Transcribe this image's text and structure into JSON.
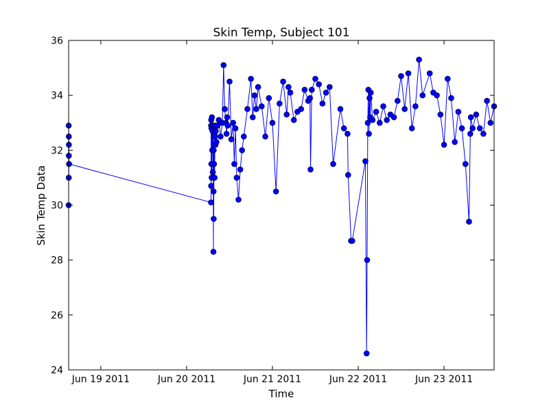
{
  "chart_data": {
    "type": "line",
    "title": "Skin Temp, Subject 101",
    "xlabel": "Time",
    "ylabel": "Skin Temp Data",
    "ylim": [
      24,
      36
    ],
    "y_ticks": [
      24,
      26,
      28,
      30,
      32,
      34,
      36
    ],
    "xlim": [
      "2011-06-18 15:00",
      "2011-06-23 14:00"
    ],
    "x_ticks": [
      {
        "date": "2011-06-19 00:00",
        "label": "Jun 19 2011"
      },
      {
        "date": "2011-06-20 00:00",
        "label": "Jun 20 2011"
      },
      {
        "date": "2011-06-21 00:00",
        "label": "Jun 21 2011"
      },
      {
        "date": "2011-06-22 00:00",
        "label": "Jun 22 2011"
      },
      {
        "date": "2011-06-23 00:00",
        "label": "Jun 23 2011"
      }
    ],
    "grid": false,
    "legend": "none",
    "colors": {
      "line": "#0000ff",
      "marker_fill": "#0000ff",
      "marker_edge": "#000000",
      "frame": "#000000"
    },
    "series": [
      {
        "x": [
          "2011-06-18 15:00",
          "2011-06-18 15:01",
          "2011-06-18 15:02",
          "2011-06-18 15:03",
          "2011-06-18 15:04",
          "2011-06-18 15:05",
          "2011-06-18 15:07",
          "2011-06-20 06:50",
          "2011-06-20 06:51",
          "2011-06-20 06:52",
          "2011-06-20 06:53",
          "2011-06-20 06:55",
          "2011-06-20 06:57",
          "2011-06-20 07:00",
          "2011-06-20 07:05",
          "2011-06-20 07:10",
          "2011-06-20 07:15",
          "2011-06-20 07:20",
          "2011-06-20 07:25",
          "2011-06-20 07:30",
          "2011-06-20 07:32",
          "2011-06-20 07:34",
          "2011-06-20 07:35",
          "2011-06-20 07:40",
          "2011-06-20 07:45",
          "2011-06-20 07:50",
          "2011-06-20 07:55",
          "2011-06-20 08:00",
          "2011-06-20 08:05",
          "2011-06-20 08:10",
          "2011-06-20 08:20",
          "2011-06-20 08:40",
          "2011-06-20 09:00",
          "2011-06-20 09:30",
          "2011-06-20 10:00",
          "2011-06-20 10:20",
          "2011-06-20 10:40",
          "2011-06-20 11:00",
          "2011-06-20 11:10",
          "2011-06-20 11:20",
          "2011-06-20 11:30",
          "2011-06-20 12:00",
          "2011-06-20 12:30",
          "2011-06-20 13:00",
          "2011-06-20 13:20",
          "2011-06-20 13:40",
          "2011-06-20 14:00",
          "2011-06-20 14:30",
          "2011-06-20 15:00",
          "2011-06-20 15:30",
          "2011-06-20 16:00",
          "2011-06-20 17:00",
          "2011-06-20 18:00",
          "2011-06-20 18:30",
          "2011-06-20 19:00",
          "2011-06-20 19:30",
          "2011-06-20 20:00",
          "2011-06-20 21:00",
          "2011-06-20 22:00",
          "2011-06-20 23:00",
          "2011-06-21 00:00",
          "2011-06-21 01:00",
          "2011-06-21 02:00",
          "2011-06-21 03:00",
          "2011-06-21 04:00",
          "2011-06-21 04:30",
          "2011-06-21 05:00",
          "2011-06-21 06:00",
          "2011-06-21 07:00",
          "2011-06-21 08:00",
          "2011-06-21 09:00",
          "2011-06-21 10:00",
          "2011-06-21 10:30",
          "2011-06-21 10:40",
          "2011-06-21 11:00",
          "2011-06-21 12:00",
          "2011-06-21 13:00",
          "2011-06-21 14:00",
          "2011-06-21 15:00",
          "2011-06-21 16:00",
          "2011-06-21 17:00",
          "2011-06-21 19:00",
          "2011-06-21 20:00",
          "2011-06-21 21:00",
          "2011-06-21 21:10",
          "2011-06-21 22:00",
          "2011-06-21 22:20",
          "2011-06-22 02:00",
          "2011-06-22 02:20",
          "2011-06-22 02:30",
          "2011-06-22 02:40",
          "2011-06-22 02:50",
          "2011-06-22 03:00",
          "2011-06-22 03:10",
          "2011-06-22 03:20",
          "2011-06-22 03:30",
          "2011-06-22 04:00",
          "2011-06-22 05:00",
          "2011-06-22 06:00",
          "2011-06-22 07:00",
          "2011-06-22 08:00",
          "2011-06-22 09:00",
          "2011-06-22 10:00",
          "2011-06-22 11:00",
          "2011-06-22 12:00",
          "2011-06-22 13:00",
          "2011-06-22 14:00",
          "2011-06-22 15:00",
          "2011-06-22 16:00",
          "2011-06-22 17:00",
          "2011-06-22 18:00",
          "2011-06-22 20:00",
          "2011-06-22 21:00",
          "2011-06-22 22:00",
          "2011-06-22 23:00",
          "2011-06-23 00:00",
          "2011-06-23 01:00",
          "2011-06-23 02:00",
          "2011-06-23 03:00",
          "2011-06-23 04:00",
          "2011-06-23 05:00",
          "2011-06-23 06:00",
          "2011-06-23 07:00",
          "2011-06-23 07:20",
          "2011-06-23 07:30",
          "2011-06-23 08:00",
          "2011-06-23 09:00",
          "2011-06-23 10:00",
          "2011-06-23 11:00",
          "2011-06-23 12:00",
          "2011-06-23 13:00",
          "2011-06-23 14:00"
        ],
        "y": [
          30.0,
          32.9,
          31.0,
          32.5,
          31.8,
          32.2,
          31.5,
          30.1,
          32.9,
          30.7,
          33.1,
          31.5,
          32.8,
          31.0,
          33.2,
          32.0,
          32.7,
          31.2,
          32.9,
          28.3,
          30.5,
          32.0,
          29.5,
          31.5,
          32.8,
          31.0,
          32.5,
          32.9,
          32.2,
          32.7,
          32.3,
          32.9,
          33.1,
          32.5,
          33.0,
          35.1,
          33.5,
          33.0,
          32.6,
          33.2,
          32.9,
          34.5,
          32.4,
          33.0,
          31.5,
          32.8,
          31.0,
          30.2,
          31.3,
          32.0,
          32.5,
          33.5,
          34.6,
          33.2,
          34.0,
          33.5,
          34.3,
          33.6,
          32.5,
          33.9,
          33.0,
          30.5,
          33.7,
          34.5,
          33.3,
          34.3,
          34.1,
          33.1,
          33.4,
          33.5,
          34.2,
          33.8,
          33.9,
          31.3,
          34.2,
          34.6,
          34.4,
          33.7,
          34.1,
          34.3,
          31.5,
          33.5,
          32.8,
          32.6,
          31.1,
          28.7,
          28.7,
          31.6,
          24.6,
          28.0,
          33.0,
          34.2,
          32.6,
          33.9,
          33.2,
          34.1,
          33.1,
          33.4,
          33.0,
          33.6,
          33.1,
          33.3,
          33.2,
          33.8,
          34.7,
          33.5,
          34.8,
          32.8,
          33.6,
          35.3,
          34.0,
          34.8,
          34.1,
          34.0,
          33.3,
          32.2,
          34.6,
          33.9,
          32.3,
          33.4,
          32.8,
          31.5,
          29.4,
          32.6,
          33.2,
          32.8,
          33.3,
          32.8,
          32.6,
          33.8,
          33.0,
          33.6
        ]
      }
    ]
  }
}
